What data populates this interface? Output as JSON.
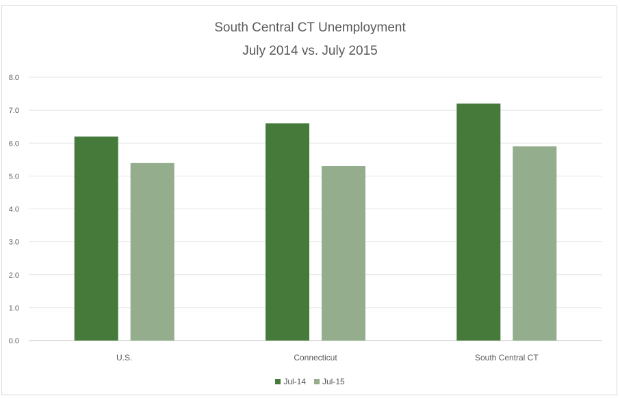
{
  "chart_data": {
    "type": "bar",
    "title": "South Central CT Unemployment",
    "subtitle": "July 2014 vs. July 2015",
    "categories": [
      "U.S.",
      "Connecticut",
      "South Central CT"
    ],
    "series": [
      {
        "name": "Jul-14",
        "values": [
          6.2,
          6.6,
          7.2
        ],
        "color": "#457a3b"
      },
      {
        "name": "Jul-15",
        "values": [
          5.4,
          5.3,
          5.9
        ],
        "color": "#93ad8d"
      }
    ],
    "ylim": [
      0,
      8
    ],
    "yticks": [
      "0.0",
      "1.0",
      "2.0",
      "3.0",
      "4.0",
      "5.0",
      "6.0",
      "7.0",
      "8.0"
    ],
    "grid": true,
    "legend": "bottom"
  }
}
